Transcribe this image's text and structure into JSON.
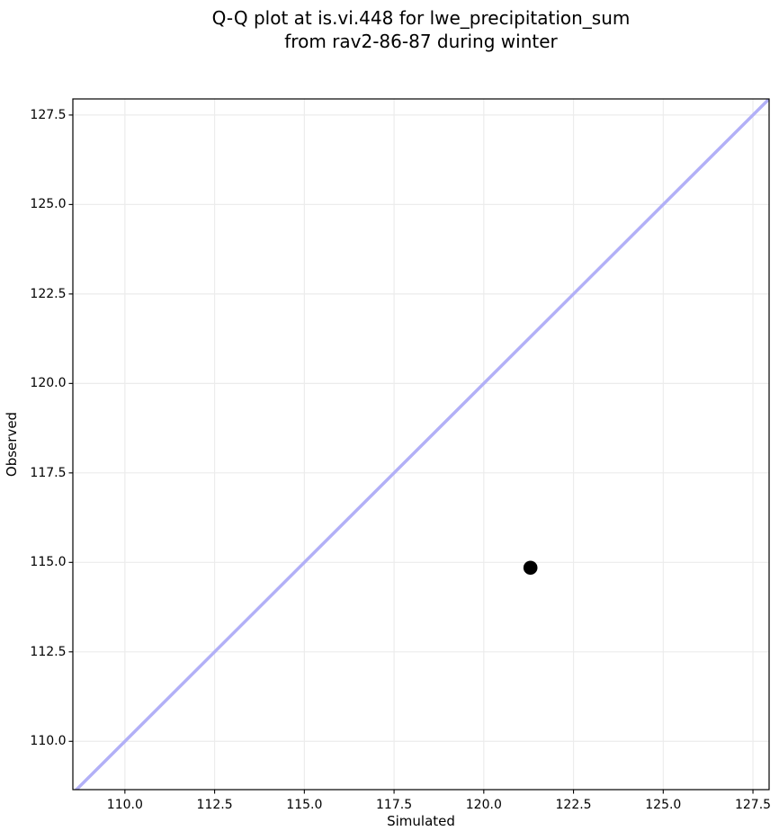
{
  "chart_data": {
    "type": "scatter",
    "title": "Q-Q plot at is.vi.448 for lwe_precipitation_sum\nfrom rav2-86-87 during winter",
    "title_lines": [
      "Q-Q plot at is.vi.448 for lwe_precipitation_sum",
      "from rav2-86-87 during winter"
    ],
    "xlabel": "Simulated",
    "ylabel": "Observed",
    "xlim": [
      108.55,
      127.95
    ],
    "ylim": [
      108.65,
      127.95
    ],
    "xticks": [
      110.0,
      112.5,
      115.0,
      117.5,
      120.0,
      122.5,
      125.0,
      127.5
    ],
    "yticks": [
      110.0,
      112.5,
      115.0,
      117.5,
      120.0,
      122.5,
      125.0,
      127.5
    ],
    "xtick_labels": [
      "110.0",
      "112.5",
      "115.0",
      "117.5",
      "120.0",
      "122.5",
      "125.0",
      "127.5"
    ],
    "ytick_labels": [
      "110.0",
      "112.5",
      "115.0",
      "117.5",
      "120.0",
      "122.5",
      "125.0",
      "127.5"
    ],
    "grid": true,
    "grid_color": "#ececec",
    "spine_color": "#000000",
    "legend": false,
    "series": [
      {
        "name": "identity line",
        "type": "line",
        "color": "#b2b0f7",
        "stroke_width": 3.5,
        "points": [
          [
            108.55,
            108.55
          ],
          [
            127.95,
            127.95
          ]
        ]
      },
      {
        "name": "quantile point",
        "type": "scatter",
        "color": "#000000",
        "marker_radius": 7.8,
        "points": [
          [
            121.3,
            114.85
          ]
        ]
      }
    ]
  }
}
